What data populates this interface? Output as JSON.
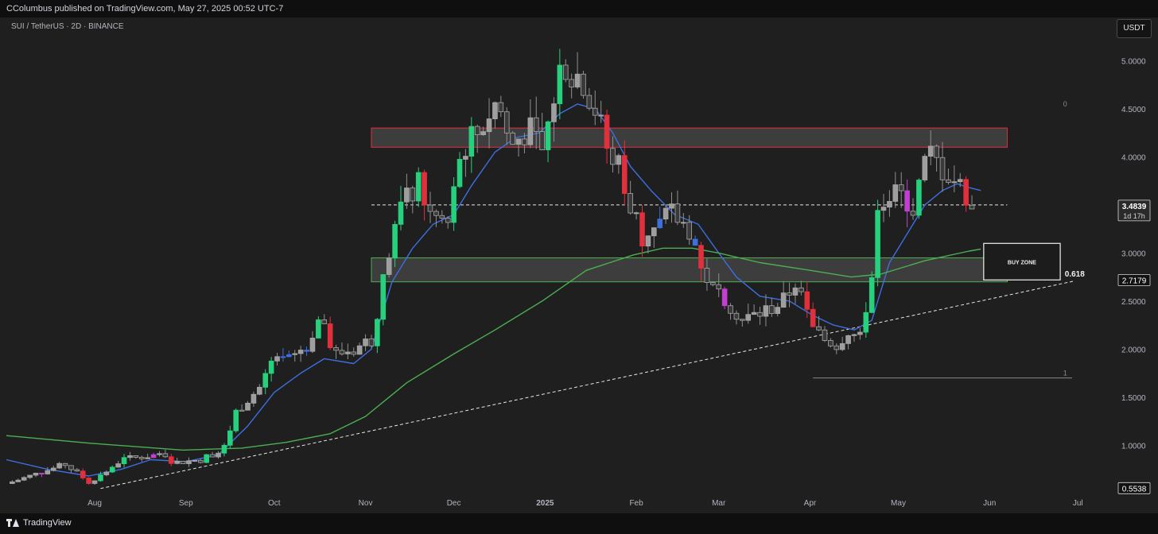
{
  "header": {
    "published_line": "CColumbus published on TradingView.com, May 27, 2025 00:52 UTC-7"
  },
  "chart_header": {
    "symbol_line": "SUI / TetherUS · 2D · BINANCE",
    "currency_label": "USDT"
  },
  "footer": {
    "brand": "TradingView"
  },
  "colors": {
    "background": "#1f1f1f",
    "up_candle": "#26d07c",
    "neutral_candle": "#9e9e9e",
    "down_candle": "#e0303d",
    "blue_candle": "#3d6fdf",
    "magenta_candle": "#c040d0",
    "ma_fast": "#3d6fdf",
    "ma_slow": "#4caf50",
    "resistance_zone": "#e0303d",
    "support_zone": "#4caf50"
  },
  "chart_data": {
    "type": "candlestick",
    "title": "",
    "xlabel": "",
    "ylabel": "",
    "ylim": [
      0.3,
      5.45
    ],
    "y_ticks": [
      "5.0000",
      "4.5000",
      "4.0000",
      "3.5000",
      "3.0000",
      "2.5000",
      "2.0000",
      "1.5000",
      "1.0000"
    ],
    "x_ticks": [
      {
        "label": "Aug",
        "date": "2024-08-01"
      },
      {
        "label": "Sep",
        "date": "2024-09-01"
      },
      {
        "label": "Oct",
        "date": "2024-10-01"
      },
      {
        "label": "Nov",
        "date": "2024-11-01"
      },
      {
        "label": "Dec",
        "date": "2024-12-01"
      },
      {
        "label": "2025",
        "date": "2025-01-01"
      },
      {
        "label": "Feb",
        "date": "2025-02-01"
      },
      {
        "label": "Mar",
        "date": "2025-03-01"
      },
      {
        "label": "Apr",
        "date": "2025-04-01"
      },
      {
        "label": "May",
        "date": "2025-05-01"
      },
      {
        "label": "Jun",
        "date": "2025-06-01"
      },
      {
        "label": "Jul",
        "date": "2025-07-01"
      }
    ],
    "x_range": [
      "2024-07-02",
      "2025-07-12"
    ],
    "last_price": {
      "value": 3.4839,
      "label": "3.4839",
      "countdown": "1d 17h"
    },
    "price_tags": [
      {
        "label": "2.7179",
        "value": 2.7179
      },
      {
        "label": "0.5538",
        "value": 0.5538
      }
    ],
    "candles": {
      "interval_days": 2,
      "start_date": "2024-07-04",
      "anchors": [
        [
          "2024-07-04",
          0.62
        ],
        [
          "2024-07-12",
          0.7
        ],
        [
          "2024-07-22",
          0.8
        ],
        [
          "2024-07-30",
          0.62
        ],
        [
          "2024-08-04",
          0.7
        ],
        [
          "2024-08-10",
          0.85
        ],
        [
          "2024-08-22",
          0.9
        ],
        [
          "2024-08-28",
          0.82
        ],
        [
          "2024-09-06",
          0.85
        ],
        [
          "2024-09-14",
          0.98
        ],
        [
          "2024-09-18",
          1.35
        ],
        [
          "2024-09-26",
          1.6
        ],
        [
          "2024-09-30",
          1.85
        ],
        [
          "2024-10-07",
          1.9
        ],
        [
          "2024-10-12",
          2.05
        ],
        [
          "2024-10-16",
          2.3
        ],
        [
          "2024-10-22",
          1.95
        ],
        [
          "2024-10-28",
          2.0
        ],
        [
          "2024-11-03",
          2.1
        ],
        [
          "2024-11-07",
          2.7
        ],
        [
          "2024-11-11",
          3.3
        ],
        [
          "2024-11-15",
          3.55
        ],
        [
          "2024-11-19",
          3.7
        ],
        [
          "2024-11-23",
          3.4
        ],
        [
          "2024-11-29",
          3.3
        ],
        [
          "2024-12-04",
          4.1
        ],
        [
          "2024-12-08",
          4.2
        ],
        [
          "2024-12-12",
          4.4
        ],
        [
          "2024-12-16",
          4.6
        ],
        [
          "2024-12-20",
          4.1
        ],
        [
          "2024-12-26",
          4.3
        ],
        [
          "2024-12-31",
          4.05
        ],
        [
          "2025-01-04",
          4.6
        ],
        [
          "2025-01-06",
          5.1
        ],
        [
          "2025-01-10",
          4.9
        ],
        [
          "2025-01-14",
          4.8
        ],
        [
          "2025-01-18",
          4.5
        ],
        [
          "2025-01-22",
          4.1
        ],
        [
          "2025-01-26",
          3.9
        ],
        [
          "2025-01-30",
          3.5
        ],
        [
          "2025-02-03",
          3.2
        ],
        [
          "2025-02-07",
          3.25
        ],
        [
          "2025-02-13",
          3.4
        ],
        [
          "2025-02-19",
          3.25
        ],
        [
          "2025-02-23",
          2.9
        ],
        [
          "2025-02-27",
          2.6
        ],
        [
          "2025-03-03",
          2.55
        ],
        [
          "2025-03-09",
          2.3
        ],
        [
          "2025-03-17",
          2.4
        ],
        [
          "2025-03-23",
          2.5
        ],
        [
          "2025-03-27",
          2.7
        ],
        [
          "2025-04-02",
          2.2
        ],
        [
          "2025-04-06",
          2.1
        ],
        [
          "2025-04-10",
          2.05
        ],
        [
          "2025-04-14",
          2.2
        ],
        [
          "2025-04-18",
          2.1
        ],
        [
          "2025-04-22",
          2.8
        ],
        [
          "2025-04-24",
          3.55
        ],
        [
          "2025-05-01",
          3.6
        ],
        [
          "2025-05-07",
          3.5
        ],
        [
          "2025-05-11",
          4.05
        ],
        [
          "2025-05-15",
          3.9
        ],
        [
          "2025-05-19",
          3.8
        ],
        [
          "2025-05-23",
          3.65
        ],
        [
          "2025-05-27",
          3.48
        ]
      ]
    },
    "series": [
      {
        "kind": "ma_fast",
        "points": [
          [
            "2024-07-02",
            0.85
          ],
          [
            "2024-07-16",
            0.75
          ],
          [
            "2024-07-30",
            0.68
          ],
          [
            "2024-08-10",
            0.75
          ],
          [
            "2024-08-20",
            0.85
          ],
          [
            "2024-09-01",
            0.83
          ],
          [
            "2024-09-12",
            0.9
          ],
          [
            "2024-09-22",
            1.2
          ],
          [
            "2024-10-01",
            1.55
          ],
          [
            "2024-10-10",
            1.75
          ],
          [
            "2024-10-18",
            1.9
          ],
          [
            "2024-10-28",
            1.85
          ],
          [
            "2024-11-03",
            2.0
          ],
          [
            "2024-11-10",
            2.7
          ],
          [
            "2024-11-17",
            3.05
          ],
          [
            "2024-11-24",
            3.3
          ],
          [
            "2024-12-01",
            3.4
          ],
          [
            "2024-12-07",
            3.7
          ],
          [
            "2024-12-15",
            4.05
          ],
          [
            "2024-12-22",
            4.2
          ],
          [
            "2024-12-30",
            4.25
          ],
          [
            "2025-01-06",
            4.45
          ],
          [
            "2025-01-12",
            4.55
          ],
          [
            "2025-01-18",
            4.5
          ],
          [
            "2025-01-24",
            4.25
          ],
          [
            "2025-01-30",
            3.9
          ],
          [
            "2025-02-06",
            3.65
          ],
          [
            "2025-02-14",
            3.4
          ],
          [
            "2025-02-22",
            3.3
          ],
          [
            "2025-03-01",
            3.0
          ],
          [
            "2025-03-07",
            2.75
          ],
          [
            "2025-03-15",
            2.55
          ],
          [
            "2025-03-25",
            2.5
          ],
          [
            "2025-04-02",
            2.35
          ],
          [
            "2025-04-09",
            2.25
          ],
          [
            "2025-04-16",
            2.2
          ],
          [
            "2025-04-22",
            2.3
          ],
          [
            "2025-04-28",
            2.9
          ],
          [
            "2025-05-04",
            3.2
          ],
          [
            "2025-05-10",
            3.5
          ],
          [
            "2025-05-16",
            3.65
          ],
          [
            "2025-05-21",
            3.72
          ],
          [
            "2025-05-25",
            3.68
          ],
          [
            "2025-05-29",
            3.65
          ]
        ]
      },
      {
        "kind": "ma_slow",
        "points": [
          [
            "2024-07-02",
            1.1
          ],
          [
            "2024-07-31",
            1.02
          ],
          [
            "2024-08-31",
            0.95
          ],
          [
            "2024-09-20",
            0.97
          ],
          [
            "2024-10-05",
            1.03
          ],
          [
            "2024-10-20",
            1.12
          ],
          [
            "2024-11-01",
            1.3
          ],
          [
            "2024-11-15",
            1.65
          ],
          [
            "2024-12-01",
            1.95
          ],
          [
            "2024-12-15",
            2.2
          ],
          [
            "2024-12-31",
            2.5
          ],
          [
            "2025-01-15",
            2.82
          ],
          [
            "2025-01-31",
            2.98
          ],
          [
            "2025-02-10",
            3.05
          ],
          [
            "2025-02-20",
            3.05
          ],
          [
            "2025-03-01",
            3.0
          ],
          [
            "2025-03-15",
            2.9
          ],
          [
            "2025-04-01",
            2.82
          ],
          [
            "2025-04-15",
            2.75
          ],
          [
            "2025-04-25",
            2.78
          ],
          [
            "2025-05-10",
            2.92
          ],
          [
            "2025-05-25",
            3.02
          ],
          [
            "2025-05-29",
            3.04
          ]
        ]
      }
    ],
    "zones": [
      {
        "kind": "resistance",
        "from": "2024-11-03",
        "to": "2025-06-07",
        "low": 4.1,
        "high": 4.3
      },
      {
        "kind": "support",
        "from": "2024-11-03",
        "to": "2025-06-07",
        "low": 2.7,
        "high": 2.95
      }
    ],
    "annotations": [
      {
        "kind": "buy_zone",
        "label": "BUY ZONE",
        "from": "2025-05-30",
        "to": "2025-06-25",
        "low": 2.72,
        "high": 3.1
      },
      {
        "kind": "fib_0",
        "label": "0",
        "date": "2025-06-26",
        "value": 4.55
      },
      {
        "kind": "fib_618",
        "label": "0.618",
        "date": "2025-06-26",
        "value": 2.78
      },
      {
        "kind": "fib_1",
        "label": "1",
        "date": "2025-06-26",
        "value": 1.75
      }
    ],
    "lines": [
      {
        "kind": "trendline",
        "from": [
          "2024-08-03",
          0.55
        ],
        "to": [
          "2025-06-30",
          2.71
        ]
      },
      {
        "kind": "price_line",
        "from": [
          "2024-11-03",
          3.5
        ],
        "to": [
          "2025-06-07",
          3.5
        ]
      },
      {
        "kind": "fib_low_line",
        "from": [
          "2025-04-02",
          1.7
        ],
        "to": [
          "2025-06-29",
          1.7
        ]
      }
    ]
  }
}
